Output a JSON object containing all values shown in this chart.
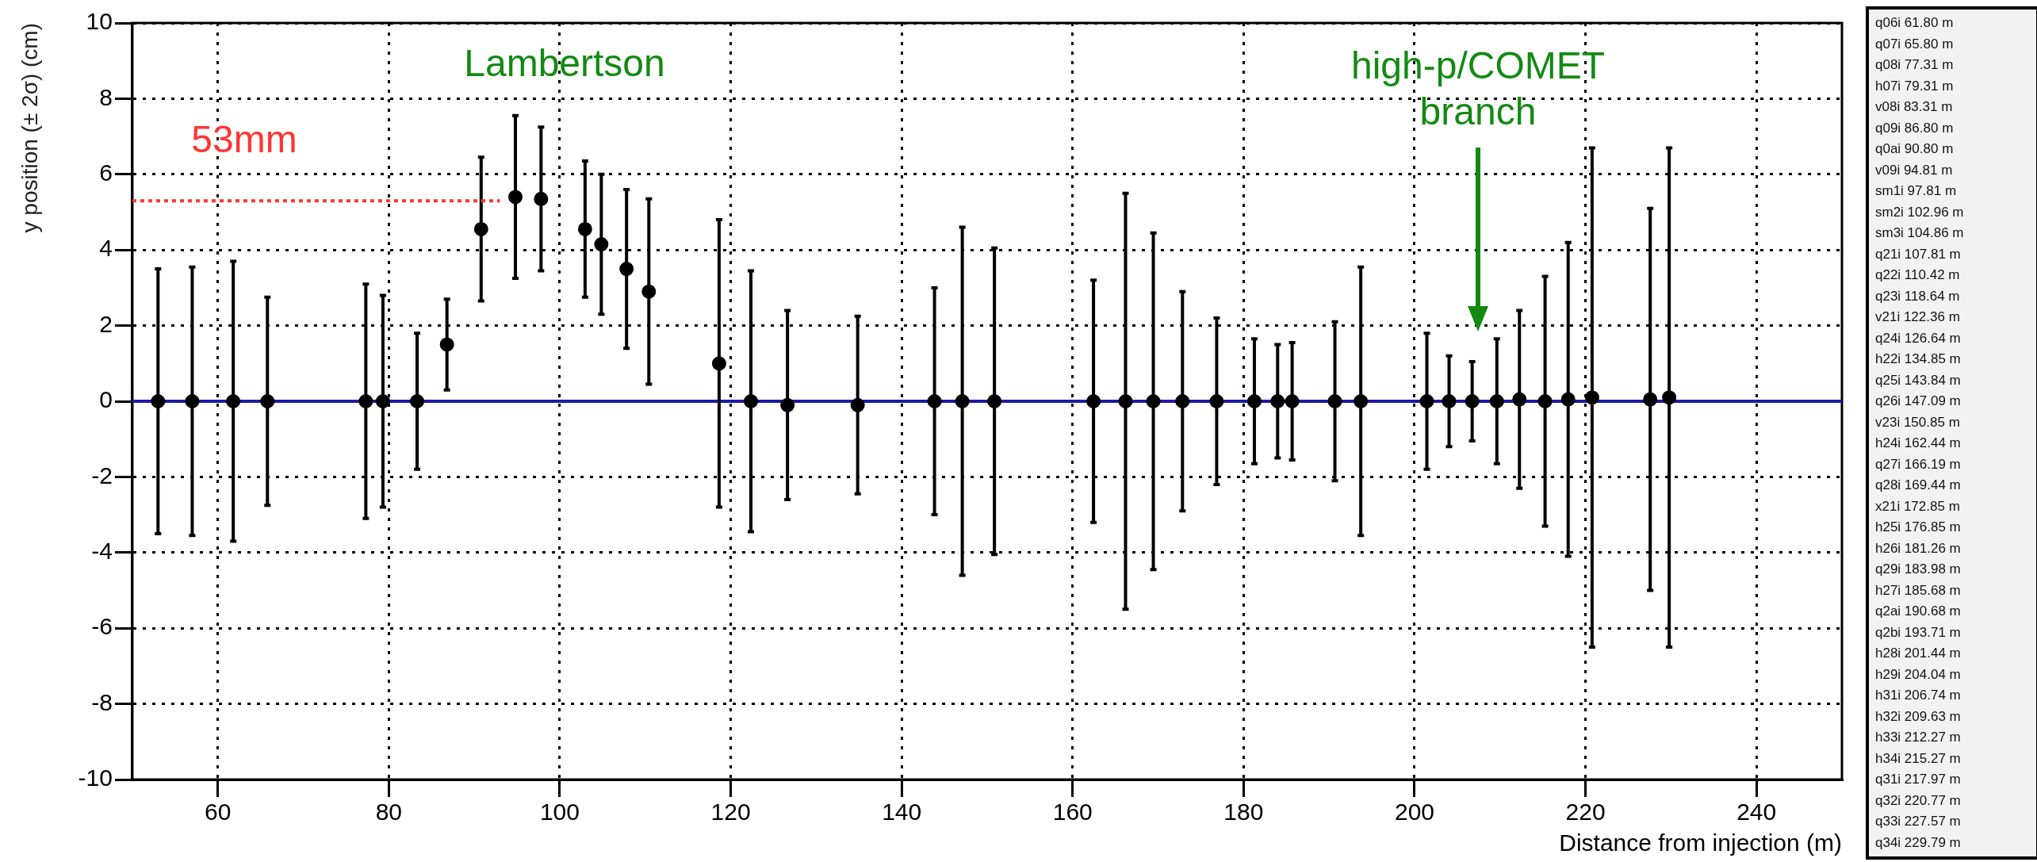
{
  "chart_data": {
    "type": "scatter",
    "ylabel": "y position (± 2σ) (cm)",
    "xlabel": "Distance from injection (m)",
    "xlim": [
      50,
      250
    ],
    "xticks": [
      60,
      80,
      100,
      120,
      140,
      160,
      180,
      200,
      220,
      240
    ],
    "ylim": [
      -10,
      10
    ],
    "yticks": [
      -10,
      -8,
      -6,
      -4,
      -2,
      0,
      2,
      4,
      6,
      8,
      10
    ],
    "grid": true,
    "legend": false,
    "series": [
      {
        "type": "scatter",
        "marker": "circle",
        "color": "#000000",
        "x": [
          53,
          57,
          61.8,
          65.8,
          77.31,
          79.31,
          83.31,
          86.8,
          90.8,
          94.81,
          97.81,
          102.96,
          104.86,
          107.81,
          110.42,
          118.64,
          122.36,
          126.64,
          134.85,
          143.84,
          147.09,
          150.85,
          162.44,
          166.19,
          169.44,
          172.85,
          176.85,
          181.26,
          183.98,
          185.68,
          190.68,
          193.71,
          201.44,
          204.04,
          206.74,
          209.63,
          212.27,
          215.27,
          217.97,
          220.77,
          227.57,
          229.79
        ],
        "values": [
          0,
          0,
          0,
          0,
          0,
          0,
          0,
          1.5,
          4.55,
          5.4,
          5.35,
          4.55,
          4.15,
          3.5,
          2.9,
          1,
          0,
          -0.1,
          -0.1,
          0,
          0,
          0,
          0,
          0,
          0,
          0,
          0,
          0,
          0,
          0,
          0,
          0,
          0,
          0,
          0,
          0,
          0.05,
          0,
          0.05,
          0.1,
          0.05,
          0.1
        ],
        "errors": [
          3.5,
          3.55,
          3.7,
          2.75,
          3.1,
          2.8,
          1.8,
          1.2,
          1.9,
          2.15,
          1.9,
          1.8,
          1.85,
          2.1,
          2.45,
          3.8,
          3.45,
          2.5,
          2.35,
          3,
          4.6,
          4.05,
          3.2,
          5.5,
          4.45,
          2.9,
          2.2,
          1.65,
          1.5,
          1.55,
          2.1,
          3.55,
          1.8,
          1.2,
          1.05,
          1.65,
          2.35,
          3.3,
          4.15,
          6.6,
          5.05,
          6.6
        ]
      },
      {
        "type": "line",
        "marker": "none",
        "line_style": "dotted",
        "color": "#ff3333",
        "x": [
          50,
          93
        ],
        "values": [
          5.3,
          5.3
        ]
      }
    ],
    "ref_lines": [
      {
        "axis": "y",
        "value": 0,
        "color": "#1a1aa8"
      }
    ],
    "annotations": [
      "Lambertson",
      "53mm",
      "high-p/COMET\nbranch",
      "q06i 61.80 m",
      "q07i 65.80 m",
      "q08i 77.31 m",
      "h07i 79.31 m",
      "v08i 83.31 m",
      "q09i 86.80 m",
      "q0ai 90.80 m",
      "v09i 94.81 m",
      "sm1i 97.81 m",
      "sm2i 102.96 m",
      "sm3i 104.86 m",
      "q21i 107.81 m",
      "q22i 110.42 m",
      "q23i 118.64 m",
      "v21i 122.36 m",
      "q24i 126.64 m",
      "h22i 134.85 m",
      "q25i 143.84 m",
      "q26i 147.09 m",
      "v23i 150.85 m",
      "h24i 162.44 m",
      "q27i 166.19 m",
      "q28i 169.44 m",
      "x21i 172.85 m",
      "h25i 176.85 m",
      "h26i 181.26 m",
      "q29i 183.98 m",
      "h27i 185.68 m",
      "q2ai 190.68 m",
      "q2bi 193.71 m",
      "h28i 201.44 m",
      "h29i 204.04 m",
      "h31i 206.74 m",
      "h32i 209.63 m",
      "h33i 212.27 m",
      "h34i 215.27 m",
      "q31i 217.97 m",
      "q32i 220.77 m",
      "q33i 227.57 m",
      "q34i 229.79 m"
    ]
  }
}
